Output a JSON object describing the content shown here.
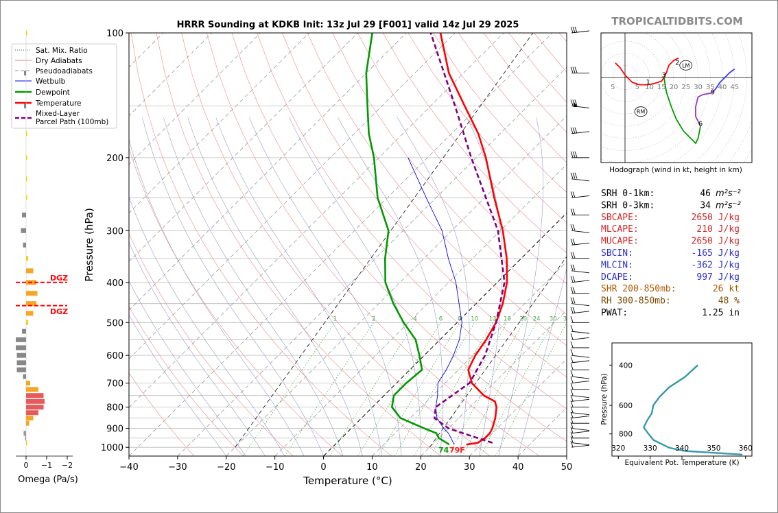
{
  "brand": "TROPICALTIDBITS.COM",
  "title": "HRRR Sounding at KDKB Init: 13z Jul 29 [F001] valid 14z Jul 29 2025",
  "skewt": {
    "xlabel": "Temperature (°C)",
    "ylabel": "Pressure (hPa)",
    "xticks": [
      -40,
      -30,
      -20,
      -10,
      0,
      10,
      20,
      30,
      40,
      50
    ],
    "xtick_labels": [
      "−40",
      "−30",
      "−20",
      "−10",
      "0",
      "10",
      "20",
      "30",
      "40",
      "50"
    ],
    "yticks": [
      100,
      200,
      300,
      400,
      500,
      600,
      700,
      800,
      900,
      1000
    ],
    "mixing_ratio_labels": [
      "1",
      "2",
      "4",
      "6",
      "8",
      "10",
      "13",
      "16",
      "20",
      "24",
      "30",
      "36"
    ],
    "surface_td_label": "74",
    "surface_t_label": "79F",
    "legend": [
      "Sat. Mix. Ratio",
      "Dry Adiabats",
      "Pseudoadiabats",
      "Wetbulb",
      "Dewpoint",
      "Temperature",
      "Mixed-Layer\nParcel Path (100mb)"
    ],
    "legend_line1": "Sat. Mix. Ratio",
    "legend_line2": "Dry Adiabats",
    "legend_line3": "Pseudoadiabats",
    "legend_line4": "Wetbulb",
    "legend_line5": "Dewpoint",
    "legend_line6": "Temperature",
    "legend_line7a": "Mixed-Layer",
    "legend_line7b": "Parcel Path (100mb)",
    "colors": {
      "temperature": "#ff0000",
      "dewpoint": "#009900",
      "wetbulb": "#0000ee",
      "parcel": "#800080"
    }
  },
  "omega": {
    "xlabel": "Omega (Pa/s)",
    "xtick_labels": [
      "0",
      "−1",
      "−2"
    ],
    "dgz_label": "DGZ"
  },
  "hodograph": {
    "caption": "Hodograph (wind in kt, height in km)",
    "ring_labels": [
      "5",
      "5",
      "10",
      "15",
      "20",
      "25",
      "30",
      "35",
      "40",
      "45"
    ],
    "height_labels": [
      "1",
      "2",
      "3",
      "6",
      "9"
    ],
    "markers": [
      "LM",
      "RM"
    ]
  },
  "indices": [
    {
      "label": "SRH 0-1km:",
      "value": "46",
      "unit": "m²s⁻²",
      "color": "#000000"
    },
    {
      "label": "SRH 0-3km:",
      "value": "34",
      "unit": "m²s⁻²",
      "color": "#000000"
    },
    {
      "label": "SBCAPE:",
      "value": "2650 J/kg",
      "unit": "",
      "color": "#d62728"
    },
    {
      "label": "MLCAPE:",
      "value": "210 J/kg",
      "unit": "",
      "color": "#d62728"
    },
    {
      "label": "MUCAPE:",
      "value": "2650 J/kg",
      "unit": "",
      "color": "#d62728"
    },
    {
      "label": "SBCIN:",
      "value": "-165 J/kg",
      "unit": "",
      "color": "#2c2cd6"
    },
    {
      "label": "MLCIN:",
      "value": "-362 J/kg",
      "unit": "",
      "color": "#2c2cd6"
    },
    {
      "label": "DCAPE:",
      "value": "997 J/kg",
      "unit": "",
      "color": "#2c2cd6"
    },
    {
      "label": "SHR 200-850mb:",
      "value": "26 kt",
      "unit": "",
      "color": "#b35900"
    },
    {
      "label": "RH 300-850mb:",
      "value": "48 %",
      "unit": "",
      "color": "#7a4a00"
    },
    {
      "label": "PWAT:",
      "value": "1.25 in",
      "unit": "",
      "color": "#000000"
    }
  ],
  "theta_e": {
    "xlabel": "Equivalent Pot. Temperature (K)",
    "ylabel": "Pressure (hPa)",
    "xtick_labels": [
      "320",
      "330",
      "340",
      "350",
      "360"
    ],
    "ytick_labels": [
      "400",
      "600",
      "800"
    ]
  },
  "chart_data": [
    {
      "type": "line",
      "title": "HRRR Sounding at KDKB Init: 13z Jul 29 [F001] valid 14z Jul 29 2025",
      "xlabel": "Temperature (°C)",
      "ylabel": "Pressure (hPa)",
      "xlim": [
        -40,
        50
      ],
      "ylim": [
        1050,
        100
      ],
      "y_scale": "log",
      "skew": true,
      "series": [
        {
          "name": "Temperature",
          "p": [
            985,
            975,
            950,
            925,
            900,
            850,
            800,
            775,
            750,
            700,
            650,
            600,
            550,
            500,
            450,
            400,
            350,
            300,
            250,
            200,
            175,
            150,
            125,
            100
          ],
          "t": [
            27,
            29,
            29.5,
            29.5,
            29,
            27.5,
            25.5,
            24,
            20.5,
            15.5,
            12,
            10.5,
            9.5,
            8,
            5.5,
            2,
            -3,
            -9.5,
            -18,
            -28,
            -34.5,
            -43,
            -53,
            -63
          ]
        },
        {
          "name": "Dewpoint",
          "p": [
            985,
            950,
            925,
            900,
            850,
            800,
            750,
            700,
            650,
            600,
            550,
            500,
            450,
            400,
            350,
            300,
            250,
            200,
            175,
            150,
            125,
            100
          ],
          "t": [
            23.5,
            20,
            18.5,
            15,
            8,
            4,
            2,
            2,
            2.5,
            -1,
            -5,
            -11,
            -17,
            -23,
            -28,
            -33,
            -42,
            -51,
            -57,
            -63,
            -70,
            -77
          ]
        },
        {
          "name": "Wetbulb",
          "p": [
            985,
            950,
            925,
            900,
            850,
            800,
            750,
            700,
            650,
            600,
            550,
            500,
            450,
            400,
            350,
            300,
            250,
            200
          ],
          "t": [
            24.5,
            22.5,
            21,
            19,
            15.5,
            13,
            11,
            8.5,
            7.5,
            6,
            4,
            1,
            -3.5,
            -8.5,
            -15,
            -22,
            -32,
            -44
          ]
        },
        {
          "name": "Mixed-Layer Parcel Path (100mb)",
          "p": [
            975,
            950,
            925,
            900,
            850,
            800,
            700,
            600,
            500,
            400,
            300,
            200,
            150,
            100
          ],
          "t": [
            32,
            28,
            24,
            20,
            15,
            13,
            15,
            12.5,
            8,
            1.5,
            -10.5,
            -31,
            -45,
            -65
          ]
        }
      ]
    },
    {
      "type": "line",
      "title": "Hodograph (wind in kt, height in km)",
      "series": [
        {
          "name": "Hodograph",
          "u": [
            -5,
            -3,
            0,
            3,
            6,
            9,
            12,
            15,
            16,
            17,
            18,
            20,
            22,
            22,
            21,
            20,
            21,
            24,
            27,
            28,
            30,
            34,
            40,
            42,
            45
          ],
          "v": [
            7,
            5,
            2,
            -1,
            -2,
            -3,
            -3,
            -2,
            0,
            1,
            4,
            5,
            6,
            12,
            13,
            14,
            16,
            21,
            20,
            22,
            25,
            30,
            33,
            34,
            35
          ]
        }
      ]
    },
    {
      "type": "line",
      "title": "",
      "xlabel": "Equivalent Pot. Temperature (K)",
      "ylabel": "Pressure (hPa)",
      "xlim": [
        318,
        362
      ],
      "series": [
        {
          "name": "Theta-e",
          "theta_e": [
            359,
            341,
            336,
            331,
            329.5,
            328,
            329,
            330.5,
            331,
            333,
            336,
            341,
            345
          ],
          "p": [
            985,
            950,
            920,
            850,
            800,
            750,
            700,
            650,
            600,
            550,
            500,
            450,
            400
          ]
        }
      ]
    }
  ]
}
